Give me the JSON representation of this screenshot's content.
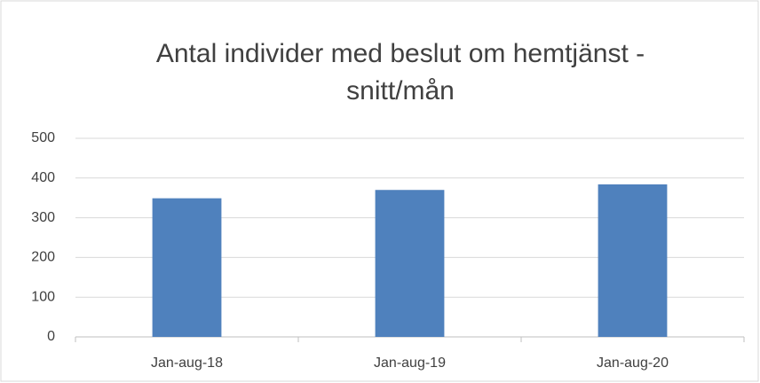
{
  "chart_data": {
    "type": "bar",
    "title": "Antal individer med beslut om hemtjänst - snitt/mån",
    "categories": [
      "Jan-aug-18",
      "Jan-aug-19",
      "Jan-aug-20"
    ],
    "values": [
      349,
      370,
      384
    ],
    "color": "#4f81bd",
    "ylim": [
      0,
      500
    ],
    "yticks": [
      0,
      100,
      200,
      300,
      400,
      500
    ],
    "grid": true
  }
}
